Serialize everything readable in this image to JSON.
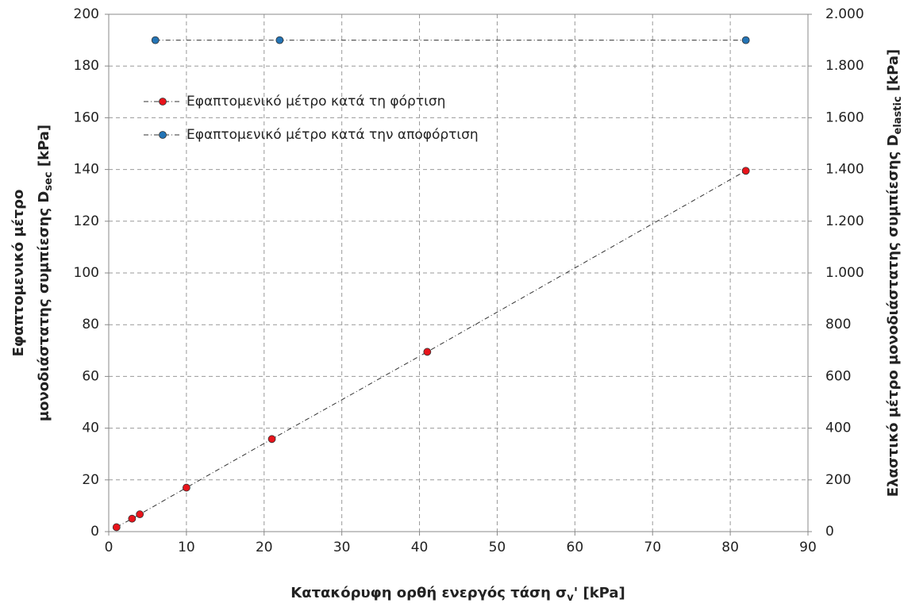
{
  "chart_data": {
    "type": "scatter",
    "xlabel": {
      "text": "Κατακόρυφη ορθή ενεργός τάση σ",
      "sub": "v",
      "unit": "' [kPa]"
    },
    "ylabel": {
      "line1": "Εφαπτομενικό μέτρο",
      "line2": "μονοδιάστατης  συμπίεσης D",
      "sub": "sec",
      "unit": " [kPa]"
    },
    "y2label": {
      "text": "Ελαστικό μέτρο μονοδιάστατης  συμπίεσης D",
      "sub": "elastic",
      "unit": " [kPa]"
    },
    "series": [
      {
        "name": "Εφαπτομενικό μέτρο κατά τη φόρτιση",
        "color": "#e8141b",
        "x": [
          1,
          3,
          4,
          10,
          21,
          41,
          82
        ],
        "values": [
          1.7,
          5,
          6.7,
          17,
          35.8,
          69.5,
          139.5
        ]
      },
      {
        "name": "Εφαπτομενικό μέτρο κατά την αποφόρτιση",
        "color": "#2474b5",
        "axis": "y2",
        "x": [
          6,
          22,
          82
        ],
        "values": [
          1900,
          1900,
          1900
        ]
      }
    ],
    "xlim": [
      0,
      90
    ],
    "xticks": [
      0,
      10,
      20,
      30,
      40,
      50,
      60,
      70,
      80,
      90
    ],
    "ylim": [
      0,
      200
    ],
    "yticks": [
      0,
      20,
      40,
      60,
      80,
      100,
      120,
      140,
      160,
      180,
      200
    ],
    "y2lim": [
      0,
      2000
    ],
    "y2ticks": [
      0,
      200,
      400,
      600,
      800,
      {
        "value": 1000,
        "label": "1.000"
      },
      {
        "value": 1200,
        "label": "1.200"
      },
      {
        "value": 1400,
        "label": "1.400"
      },
      {
        "value": 1600,
        "label": "1.600"
      },
      {
        "value": 1800,
        "label": "1.800"
      },
      {
        "value": 2000,
        "label": "2.000"
      }
    ],
    "grid": true,
    "legend": "upper left"
  }
}
